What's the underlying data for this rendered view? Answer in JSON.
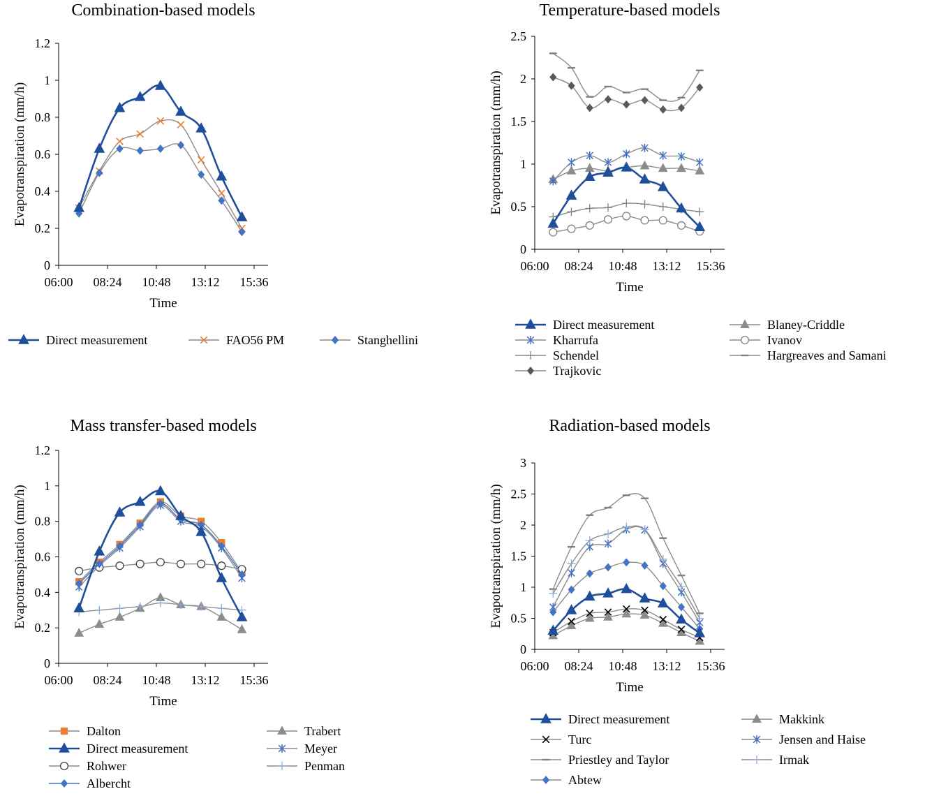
{
  "chart_data": [
    {
      "type": "line",
      "title": "Combination-based models",
      "xlabel": "Time",
      "ylabel": "Evapotranspiration (mm/h)",
      "xticks": [
        "06:00",
        "08:24",
        "10:48",
        "13:12",
        "15:36"
      ],
      "yticks": [
        "0",
        "0.2",
        "0.4",
        "0.6",
        "0.8",
        "1",
        "1.2"
      ],
      "ylim": [
        0,
        1.2
      ],
      "x": [
        7,
        8,
        9,
        10,
        11,
        12,
        13,
        14,
        15
      ],
      "series": [
        {
          "name": "Direct measurement",
          "color": "#1f4e9a",
          "marker": "triangle",
          "lineWidth": 2.6,
          "values": [
            0.31,
            0.63,
            0.85,
            0.91,
            0.97,
            0.83,
            0.74,
            0.48,
            0.26
          ]
        },
        {
          "name": "FAO56 PM",
          "color": "#8c8c8c",
          "markerColor": "#ed7d31",
          "marker": "x",
          "lineWidth": 1.4,
          "values": [
            0.31,
            0.51,
            0.67,
            0.71,
            0.78,
            0.76,
            0.57,
            0.39,
            0.2
          ]
        },
        {
          "name": "Stanghellini",
          "color": "#8c8c8c",
          "markerColor": "#4472c4",
          "marker": "diamond",
          "lineWidth": 1.4,
          "values": [
            0.28,
            0.5,
            0.63,
            0.62,
            0.63,
            0.65,
            0.49,
            0.35,
            0.18
          ]
        }
      ]
    },
    {
      "type": "line",
      "title": "Temperature-based models",
      "xlabel": "Time",
      "ylabel": "Evapotranspiration (mm/h)",
      "xticks": [
        "06:00",
        "08:24",
        "10:48",
        "13:12",
        "15:36"
      ],
      "yticks": [
        "0",
        "0.5",
        "1",
        "1.5",
        "2",
        "2.5"
      ],
      "ylim": [
        0,
        2.5
      ],
      "x": [
        7,
        8,
        9,
        10,
        11,
        12,
        13,
        14,
        15
      ],
      "series": [
        {
          "name": "Direct measurement",
          "color": "#1f4e9a",
          "marker": "triangle",
          "lineWidth": 2.6,
          "values": [
            0.3,
            0.63,
            0.85,
            0.9,
            0.96,
            0.82,
            0.73,
            0.48,
            0.26
          ]
        },
        {
          "name": "Blaney-Criddle",
          "color": "#8c8c8c",
          "marker": "triangle",
          "markerColor": "#8c8c8c",
          "lineWidth": 1.4,
          "values": [
            0.82,
            0.92,
            0.95,
            0.92,
            0.96,
            0.98,
            0.95,
            0.95,
            0.92
          ]
        },
        {
          "name": "Kharrufa",
          "color": "#8c8c8c",
          "markerColor": "#4472c4",
          "marker": "asterisk",
          "lineWidth": 1.4,
          "values": [
            0.8,
            1.02,
            1.1,
            1.02,
            1.12,
            1.19,
            1.1,
            1.09,
            1.02
          ]
        },
        {
          "name": "Ivanov",
          "color": "#8c8c8c",
          "markerColor": "#808080",
          "marker": "circle",
          "lineWidth": 1.4,
          "values": [
            0.2,
            0.24,
            0.28,
            0.35,
            0.39,
            0.34,
            0.34,
            0.28,
            0.21
          ]
        },
        {
          "name": "Schendel",
          "color": "#8c8c8c",
          "markerColor": "#808080",
          "marker": "plus",
          "lineWidth": 1.4,
          "values": [
            0.38,
            0.44,
            0.48,
            0.49,
            0.54,
            0.53,
            0.5,
            0.47,
            0.44
          ]
        },
        {
          "name": "Hargreaves and Samani",
          "color": "#8c8c8c",
          "markerColor": "#808080",
          "marker": "dash",
          "lineWidth": 1.4,
          "values": [
            2.3,
            2.13,
            1.79,
            1.91,
            1.84,
            1.88,
            1.75,
            1.78,
            2.1
          ]
        },
        {
          "name": "Trajkovic",
          "color": "#8c8c8c",
          "markerColor": "#595959",
          "marker": "diamond",
          "lineWidth": 1.4,
          "values": [
            2.02,
            1.92,
            1.66,
            1.76,
            1.7,
            1.75,
            1.64,
            1.66,
            1.9
          ]
        }
      ]
    },
    {
      "type": "line",
      "title": "Mass transfer-based models",
      "xlabel": "Time",
      "ylabel": "Evapotranspiration (mm/h)",
      "xticks": [
        "06:00",
        "08:24",
        "10:48",
        "13:12",
        "15:36"
      ],
      "yticks": [
        "0",
        "0.2",
        "0.4",
        "0.6",
        "0.8",
        "1",
        "1.2"
      ],
      "ylim": [
        0,
        1.2
      ],
      "x": [
        7,
        8,
        9,
        10,
        11,
        12,
        13,
        14,
        15
      ],
      "series": [
        {
          "name": "Dalton",
          "color": "#8c8c8c",
          "markerColor": "#ed7d31",
          "marker": "square",
          "lineWidth": 1.4,
          "values": [
            0.46,
            0.57,
            0.67,
            0.79,
            0.91,
            0.83,
            0.8,
            0.68,
            0.51
          ]
        },
        {
          "name": "Trabert",
          "color": "#8c8c8c",
          "markerColor": "#8c8c8c",
          "marker": "triangle",
          "lineWidth": 1.4,
          "values": [
            0.17,
            0.22,
            0.26,
            0.31,
            0.37,
            0.33,
            0.32,
            0.26,
            0.19
          ]
        },
        {
          "name": "Direct measurement",
          "color": "#1f4e9a",
          "marker": "triangle",
          "lineWidth": 2.6,
          "values": [
            0.31,
            0.63,
            0.85,
            0.91,
            0.97,
            0.83,
            0.74,
            0.48,
            0.26
          ]
        },
        {
          "name": "Meyer",
          "color": "#8c8c8c",
          "markerColor": "#4472c4",
          "marker": "asterisk",
          "lineWidth": 1.4,
          "values": [
            0.43,
            0.55,
            0.65,
            0.77,
            0.89,
            0.8,
            0.77,
            0.65,
            0.48
          ]
        },
        {
          "name": "Rohwer",
          "color": "#8c8c8c",
          "markerColor": "#404040",
          "marker": "circle",
          "lineWidth": 1.4,
          "values": [
            0.52,
            0.54,
            0.55,
            0.56,
            0.57,
            0.56,
            0.56,
            0.55,
            0.53
          ]
        },
        {
          "name": "Penman",
          "color": "#8c8c8c",
          "markerColor": "#8faadc",
          "marker": "plus",
          "lineWidth": 1.4,
          "values": [
            0.29,
            0.3,
            0.31,
            0.32,
            0.34,
            0.33,
            0.32,
            0.31,
            0.3
          ]
        },
        {
          "name": "Albercht",
          "color": "#4472c4",
          "markerColor": "#4472c4",
          "marker": "diamond",
          "lineWidth": 1.4,
          "values": [
            0.45,
            0.56,
            0.66,
            0.78,
            0.9,
            0.81,
            0.78,
            0.66,
            0.5
          ]
        }
      ]
    },
    {
      "type": "line",
      "title": "Radiation-based models",
      "xlabel": "Time",
      "ylabel": "Evapotranspiration (mm/h)",
      "xticks": [
        "06:00",
        "08:24",
        "10:48",
        "13:12",
        "15:36"
      ],
      "yticks": [
        "0",
        "0.5",
        "1",
        "1.5",
        "2",
        "2.5",
        "3"
      ],
      "ylim": [
        0,
        3
      ],
      "x": [
        7,
        8,
        9,
        10,
        11,
        12,
        13,
        14,
        15
      ],
      "series": [
        {
          "name": "Direct measurement",
          "color": "#1f4e9a",
          "marker": "triangle",
          "lineWidth": 2.6,
          "values": [
            0.3,
            0.63,
            0.85,
            0.9,
            0.97,
            0.82,
            0.74,
            0.48,
            0.26
          ]
        },
        {
          "name": "Makkink",
          "color": "#8c8c8c",
          "markerColor": "#8c8c8c",
          "marker": "triangle",
          "lineWidth": 1.4,
          "values": [
            0.22,
            0.38,
            0.5,
            0.52,
            0.57,
            0.55,
            0.42,
            0.27,
            0.13
          ]
        },
        {
          "name": "Turc",
          "color": "#8c8c8c",
          "markerColor": "#000000",
          "marker": "x",
          "lineWidth": 1.4,
          "values": [
            0.27,
            0.45,
            0.58,
            0.6,
            0.65,
            0.63,
            0.48,
            0.32,
            0.19
          ]
        },
        {
          "name": "Jensen and Haise",
          "color": "#8c8c8c",
          "markerColor": "#4472c4",
          "marker": "asterisk",
          "lineWidth": 1.4,
          "values": [
            0.68,
            1.23,
            1.65,
            1.7,
            1.93,
            1.92,
            1.38,
            0.92,
            0.43
          ]
        },
        {
          "name": "Priestley and Taylor",
          "color": "#8c8c8c",
          "markerColor": "#808080",
          "marker": "dash",
          "lineWidth": 1.4,
          "values": [
            0.97,
            1.65,
            2.16,
            2.28,
            2.48,
            2.43,
            1.79,
            1.19,
            0.58
          ]
        },
        {
          "name": "Irmak",
          "color": "#8c8c8c",
          "markerColor": "#8faadc",
          "marker": "plus",
          "lineWidth": 1.4,
          "values": [
            0.9,
            1.38,
            1.75,
            1.86,
            1.97,
            1.93,
            1.45,
            1.01,
            0.5
          ]
        },
        {
          "name": "Abtew",
          "color": "#8c8c8c",
          "markerColor": "#4472c4",
          "marker": "diamond",
          "lineWidth": 1.4,
          "values": [
            0.6,
            0.96,
            1.22,
            1.32,
            1.4,
            1.35,
            1.02,
            0.68,
            0.33
          ]
        }
      ]
    }
  ]
}
